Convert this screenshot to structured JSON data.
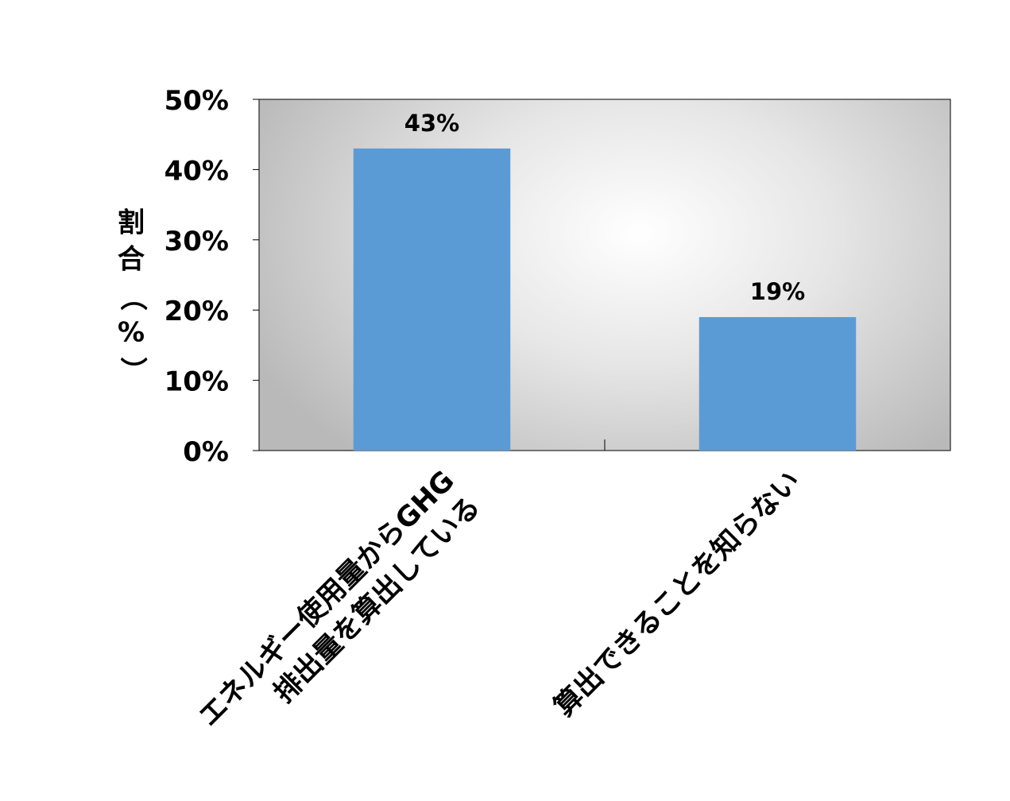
{
  "chart_data": {
    "type": "bar",
    "categories": [
      [
        "エネルギー使用量からGHG",
        "排出量を算出している"
      ],
      [
        "算出できることを知らない"
      ]
    ],
    "values": [
      43,
      19
    ],
    "data_labels": [
      "43%",
      "19%"
    ],
    "ylabel_chars": [
      "割",
      "合",
      "（",
      "%",
      "）"
    ],
    "y_ticks": [
      {
        "value": 0,
        "label": "0%"
      },
      {
        "value": 10,
        "label": "10%"
      },
      {
        "value": 20,
        "label": "20%"
      },
      {
        "value": 30,
        "label": "30%"
      },
      {
        "value": 40,
        "label": "40%"
      },
      {
        "value": 50,
        "label": "50%"
      }
    ],
    "ylim": [
      0,
      50
    ],
    "colors": {
      "bar": "#5b9bd5",
      "plot_center": "#ffffff",
      "plot_edge": "#b9b9b9"
    }
  }
}
